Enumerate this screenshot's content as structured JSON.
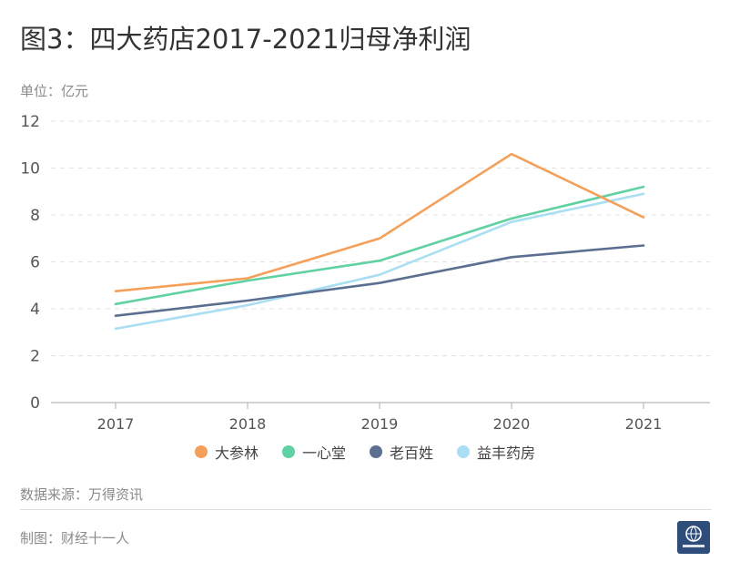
{
  "header": {
    "title": "图3：四大药店2017-2021归母净利润"
  },
  "unit_label": "单位：亿元",
  "footer": {
    "source": "数据来源：万得资讯",
    "maker": "制图：财经十一人",
    "logo_text": "财经十一人"
  },
  "chart_data": {
    "type": "line",
    "categories": [
      "2017",
      "2018",
      "2019",
      "2020",
      "2021"
    ],
    "y_ticks": [
      "0",
      "2",
      "4",
      "6",
      "8",
      "10",
      "12"
    ],
    "ylim": [
      0,
      12
    ],
    "grid": true,
    "legend_position": "bottom",
    "series": [
      {
        "name": "大参林",
        "color": "#f5a05a",
        "values": [
          4.75,
          5.3,
          7.0,
          10.6,
          7.9
        ]
      },
      {
        "name": "一心堂",
        "color": "#5fd1a3",
        "values": [
          4.2,
          5.2,
          6.05,
          7.85,
          9.2
        ]
      },
      {
        "name": "老百姓",
        "color": "#5c6f91",
        "values": [
          3.7,
          4.35,
          5.1,
          6.2,
          6.7
        ]
      },
      {
        "name": "益丰药房",
        "color": "#a9def3",
        "values": [
          3.15,
          4.15,
          5.45,
          7.7,
          8.9
        ]
      }
    ]
  }
}
